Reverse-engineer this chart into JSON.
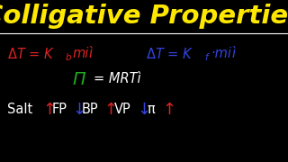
{
  "background_color": "#000000",
  "title": "Colligative Properties",
  "title_color": "#FFE800",
  "line_color": "#FFFFFF",
  "row1_left": {
    "delta_T": "ΔT = K",
    "sub": "b",
    "rest": "mi",
    "color_main": "#DD2222",
    "color_sub": "#DD2222"
  },
  "row1_right": {
    "delta_T": "ΔT = K",
    "sub": "f",
    "rest": "·mi",
    "color_main": "#3344DD",
    "color_sub": "#3344DD"
  },
  "row2": {
    "text_pi": "Π",
    "text_rest": " = MRTì",
    "color_pi": "#22AA22",
    "color_rest": "#FFFFFF"
  },
  "row3": [
    {
      "text": "Salt",
      "color": "#FFFFFF"
    },
    {
      "text": "↑",
      "color": "#DD2222"
    },
    {
      "text": " FP",
      "color": "#FFFFFF"
    },
    {
      "text": "↓",
      "color": "#3344DD"
    },
    {
      "text": " BP",
      "color": "#FFFFFF"
    },
    {
      "text": "↑",
      "color": "#DD2222"
    },
    {
      "text": " VP",
      "color": "#FFFFFF"
    },
    {
      "text": "↓",
      "color": "#3344DD"
    },
    {
      "text": " π",
      "color": "#FFFFFF"
    },
    {
      "text": "↑",
      "color": "#DD2222"
    }
  ]
}
